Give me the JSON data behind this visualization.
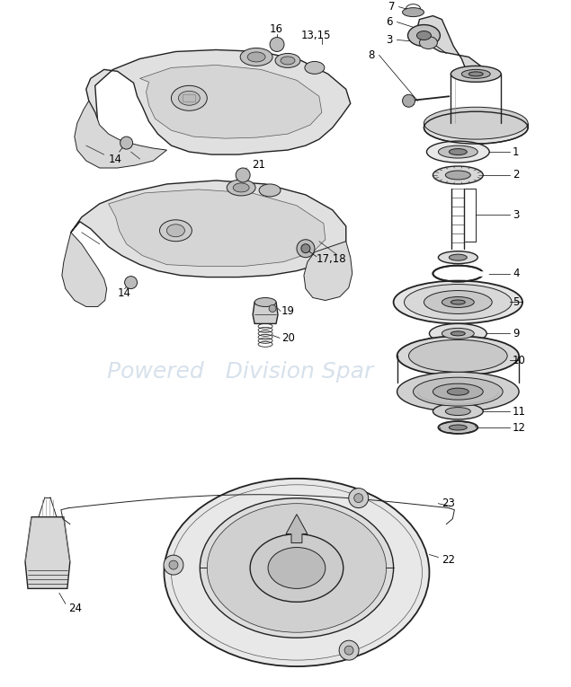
{
  "background_color": "#ffffff",
  "line_color": "#222222",
  "watermark_text": "Powered   Division Spar",
  "watermark_color": "#b0c4d8",
  "watermark_alpha": 0.5,
  "watermark_fontsize": 18,
  "label_fontsize": 8.5,
  "fig_width": 6.35,
  "fig_height": 7.65,
  "dpi": 100
}
